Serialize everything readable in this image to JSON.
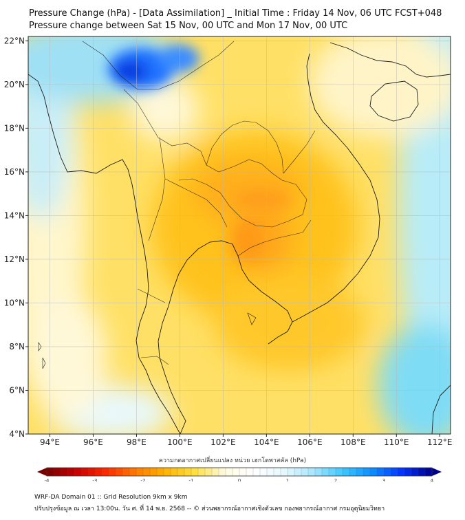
{
  "title": {
    "line1": "Pressure Change (hPa) - [Data Assimilation] _ Initial Time : Friday 14 Nov, 06 UTC FCST+048",
    "line2": "Pressure change between Sat 15 Nov, 00 UTC and Mon 17 Nov, 00 UTC"
  },
  "map": {
    "lon_range": [
      93,
      112.5
    ],
    "lat_range": [
      4,
      22.2
    ],
    "lon_ticks": [
      "94°E",
      "96°E",
      "98°E",
      "100°E",
      "102°E",
      "104°E",
      "106°E",
      "108°E",
      "110°E",
      "112°E"
    ],
    "lat_ticks": [
      "4°N",
      "6°N",
      "8°N",
      "10°N",
      "12°N",
      "14°N",
      "16°N",
      "18°N",
      "20°N",
      "22°N"
    ],
    "field_description": "pressure change field"
  },
  "colorbar": {
    "label": "ความกดอากาศเปลี่ยนแปลง หน่วย เฮกโตพาสคัล (hPa)",
    "min": -4,
    "max": 4,
    "ticks": [
      "-4",
      "-3",
      "-2",
      "-1",
      "0",
      "1",
      "2",
      "3",
      "4"
    ],
    "colors": [
      "#7a0000",
      "#c80000",
      "#ff2a00",
      "#ff7a00",
      "#ffb400",
      "#ffe040",
      "#fffbe0",
      "#ffffff",
      "#e6f8ff",
      "#a8e6ff",
      "#3cc8ff",
      "#0a8cff",
      "#0032ff",
      "#00008c"
    ]
  },
  "footer": {
    "line1": "WRF-DA Domain 01 :: Grid Resolution 9km x 9km",
    "line2": "ปรับปรุงข้อมูล ณ เวลา 13:00น. วัน ศ. ที่ 14 พ.ย. 2568 -- © ส่วนพยากรณ์อากาศเชิงตัวเลข กองพยากรณ์อากาศ กรมอุตุนิยมวิทยา"
  }
}
